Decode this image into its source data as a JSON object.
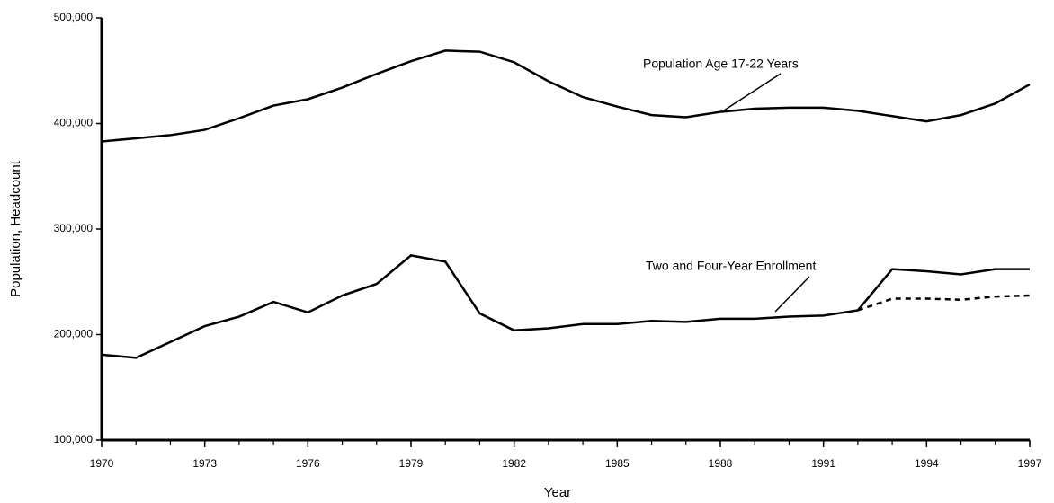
{
  "chart_data": {
    "type": "line",
    "x_label": "Year",
    "y_label": "Population, Headcount",
    "x": [
      1970,
      1971,
      1972,
      1973,
      1974,
      1975,
      1976,
      1977,
      1978,
      1979,
      1980,
      1981,
      1982,
      1983,
      1984,
      1985,
      1986,
      1987,
      1988,
      1989,
      1990,
      1991,
      1992,
      1993,
      1994,
      1995,
      1996,
      1997
    ],
    "series": [
      {
        "name": "Population Age 17-22 Years",
        "color": "#000000",
        "dashed": false,
        "values": [
          383000,
          386000,
          389000,
          394000,
          405000,
          417000,
          423000,
          434000,
          447000,
          459000,
          469000,
          468000,
          458000,
          440000,
          425000,
          416000,
          408000,
          406000,
          411000,
          414000,
          415000,
          415000,
          412000,
          407000,
          402000,
          408000,
          419000,
          437000
        ]
      },
      {
        "name": "Two and Four-Year Enrollment",
        "color": "#000000",
        "dashed": false,
        "values": [
          181000,
          178000,
          193000,
          208000,
          217000,
          231000,
          221000,
          237000,
          248000,
          275000,
          269000,
          220000,
          204000,
          206000,
          210000,
          210000,
          213000,
          212000,
          215000,
          215000,
          217000,
          218000,
          223000,
          262000,
          260000,
          257000,
          262000,
          262000
        ]
      },
      {
        "color": "#000000",
        "dashed": true,
        "values": [
          null,
          null,
          null,
          null,
          null,
          null,
          null,
          null,
          null,
          null,
          null,
          null,
          null,
          null,
          null,
          null,
          null,
          null,
          null,
          null,
          null,
          null,
          223000,
          234000,
          234000,
          233000,
          236000,
          237000
        ]
      }
    ],
    "xlim": [
      1970,
      1997
    ],
    "xticks": [
      1970,
      1973,
      1976,
      1979,
      1982,
      1985,
      1988,
      1991,
      1994,
      1997
    ],
    "ylim": [
      100000,
      500000
    ],
    "yticks": [
      {
        "value": 100000,
        "label": "100,000"
      },
      {
        "value": 200000,
        "label": "200,000"
      },
      {
        "value": 300000,
        "label": "300,000"
      },
      {
        "value": 400000,
        "label": "400,000"
      },
      {
        "value": 500000,
        "label": "500,000"
      }
    ],
    "grid": false
  }
}
